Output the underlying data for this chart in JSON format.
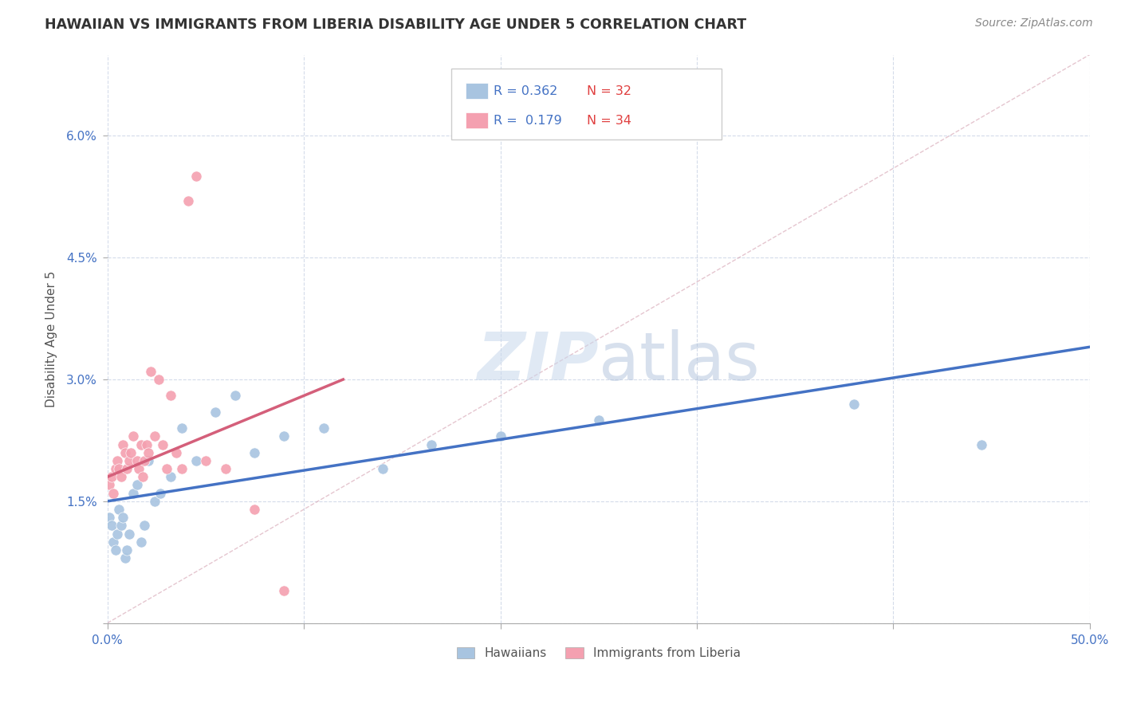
{
  "title": "HAWAIIAN VS IMMIGRANTS FROM LIBERIA DISABILITY AGE UNDER 5 CORRELATION CHART",
  "source": "Source: ZipAtlas.com",
  "ylabel": "Disability Age Under 5",
  "xlim": [
    0.0,
    0.5
  ],
  "ylim": [
    0.0,
    0.07
  ],
  "hawaiian_R": 0.362,
  "hawaiian_N": 32,
  "liberia_R": 0.179,
  "liberia_N": 34,
  "hawaiian_color": "#a8c4e0",
  "liberia_color": "#f4a0b0",
  "hawaiian_line_color": "#4472c4",
  "liberia_line_color": "#d45f7a",
  "diagonal_color": "#c8c8c8",
  "background_color": "#ffffff",
  "grid_color": "#d0d8e8",
  "legend_label_hawaiian": "Hawaiians",
  "legend_label_liberia": "Immigrants from Liberia",
  "hawaiian_x": [
    0.001,
    0.002,
    0.003,
    0.004,
    0.005,
    0.006,
    0.007,
    0.008,
    0.009,
    0.01,
    0.011,
    0.013,
    0.015,
    0.017,
    0.019,
    0.021,
    0.024,
    0.027,
    0.032,
    0.038,
    0.045,
    0.055,
    0.065,
    0.075,
    0.09,
    0.11,
    0.14,
    0.165,
    0.2,
    0.25,
    0.38,
    0.445
  ],
  "hawaiian_y": [
    0.013,
    0.012,
    0.01,
    0.009,
    0.011,
    0.014,
    0.012,
    0.013,
    0.008,
    0.009,
    0.011,
    0.016,
    0.017,
    0.01,
    0.012,
    0.02,
    0.015,
    0.016,
    0.018,
    0.024,
    0.02,
    0.026,
    0.028,
    0.021,
    0.023,
    0.024,
    0.019,
    0.022,
    0.023,
    0.025,
    0.027,
    0.022
  ],
  "liberia_x": [
    0.001,
    0.002,
    0.003,
    0.004,
    0.005,
    0.006,
    0.007,
    0.008,
    0.009,
    0.01,
    0.011,
    0.012,
    0.013,
    0.015,
    0.016,
    0.017,
    0.018,
    0.019,
    0.02,
    0.021,
    0.022,
    0.024,
    0.026,
    0.028,
    0.03,
    0.032,
    0.035,
    0.038,
    0.041,
    0.045,
    0.05,
    0.06,
    0.075,
    0.09
  ],
  "liberia_y": [
    0.017,
    0.018,
    0.016,
    0.019,
    0.02,
    0.019,
    0.018,
    0.022,
    0.021,
    0.019,
    0.02,
    0.021,
    0.023,
    0.02,
    0.019,
    0.022,
    0.018,
    0.02,
    0.022,
    0.021,
    0.031,
    0.023,
    0.03,
    0.022,
    0.019,
    0.028,
    0.021,
    0.019,
    0.052,
    0.055,
    0.02,
    0.019,
    0.014,
    0.004
  ],
  "haw_line_x0": 0.0,
  "haw_line_y0": 0.015,
  "haw_line_x1": 0.5,
  "haw_line_y1": 0.034,
  "lib_line_x0": 0.0,
  "lib_line_y0": 0.018,
  "lib_line_x1": 0.12,
  "lib_line_y1": 0.03
}
